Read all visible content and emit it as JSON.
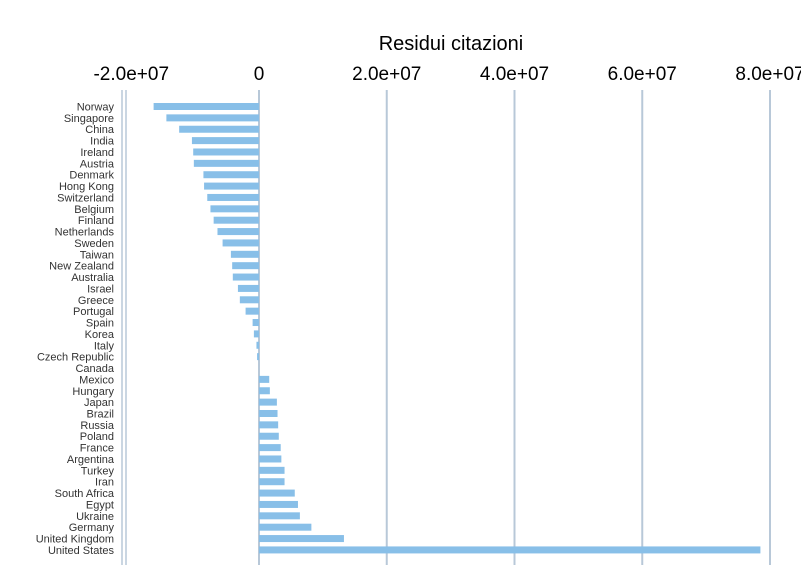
{
  "chart_data": {
    "type": "bar",
    "orientation": "horizontal",
    "title": "Residui citazioni",
    "xlabel": "",
    "ylabel": "",
    "xlim": [
      -21000000.0,
      80000000.0
    ],
    "x_ticks": [
      -20000000.0,
      0,
      20000000.0,
      40000000.0,
      60000000.0,
      80000000.0
    ],
    "x_tick_labels": [
      "-2.0e+07",
      "0",
      "2.0e+07",
      "4.0e+07",
      "6.0e+07",
      "8.0e+07"
    ],
    "axis_position": "top",
    "grid": true,
    "bar_color": "#88bfe8",
    "grid_color": "#b8c8d8",
    "categories": [
      "Norway",
      "Singapore",
      "China",
      "India",
      "Ireland",
      "Austria",
      "Denmark",
      "Hong Kong",
      "Switzerland",
      "Belgium",
      "Finland",
      "Netherlands",
      "Sweden",
      "Taiwan",
      "New Zealand",
      "Australia",
      "Israel",
      "Greece",
      "Portugal",
      "Spain",
      "Korea",
      "Italy",
      "Czech Republic",
      "Canada",
      "Mexico",
      "Hungary",
      "Japan",
      "Brazil",
      "Russia",
      "Poland",
      "France",
      "Argentina",
      "Turkey",
      "Iran",
      "South Africa",
      "Egypt",
      "Ukraine",
      "Germany",
      "United Kingdom",
      "United States"
    ],
    "values": [
      -16500000,
      -14500000,
      -12500000,
      -10500000,
      -10300000,
      -10200000,
      -8700000,
      -8600000,
      -8100000,
      -7600000,
      -7100000,
      -6500000,
      -5700000,
      -4400000,
      -4200000,
      -4100000,
      -3300000,
      -3000000,
      -2100000,
      -1000000,
      -800000,
      -400000,
      -300000,
      0,
      1600000,
      1700000,
      2800000,
      2900000,
      3000000,
      3100000,
      3400000,
      3500000,
      4000000,
      4000000,
      5600000,
      6100000,
      6400000,
      8200000,
      13300000,
      78500000
    ]
  }
}
